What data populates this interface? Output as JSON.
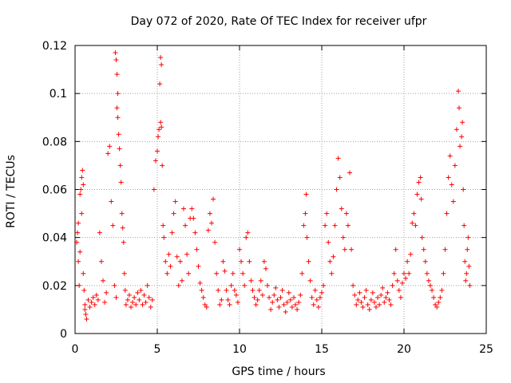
{
  "chart_data": {
    "type": "scatter",
    "title": "Day 072 of 2020, Rate Of TEC Index for receiver ufpr",
    "xlabel": "GPS time / hours",
    "ylabel": "ROTI / TECUs",
    "xlim": [
      0,
      25
    ],
    "ylim": [
      0,
      0.12
    ],
    "xticks": [
      0,
      5,
      10,
      15,
      20,
      25
    ],
    "yticks": [
      0,
      0.02,
      0.04,
      0.06,
      0.08,
      0.1,
      0.12
    ],
    "xtick_labels": [
      "0",
      "5",
      "10",
      "15",
      "20",
      "25"
    ],
    "ytick_labels": [
      "0",
      "0.02",
      "0.04",
      "0.06",
      "0.08",
      "0.1",
      "0.12"
    ],
    "grid": true,
    "marker": "+",
    "color": "#ff0000",
    "series": [
      {
        "name": "ROTI",
        "points": [
          [
            0.1,
            0.038
          ],
          [
            0.15,
            0.042
          ],
          [
            0.2,
            0.03
          ],
          [
            0.25,
            0.02
          ],
          [
            0.3,
            0.058
          ],
          [
            0.35,
            0.06
          ],
          [
            0.4,
            0.065
          ],
          [
            0.45,
            0.068
          ],
          [
            0.5,
            0.025
          ],
          [
            0.55,
            0.018
          ],
          [
            0.6,
            0.01
          ],
          [
            0.65,
            0.008
          ],
          [
            0.2,
            0.046
          ],
          [
            0.3,
            0.034
          ],
          [
            0.4,
            0.05
          ],
          [
            0.5,
            0.062
          ],
          [
            0.6,
            0.012
          ],
          [
            0.7,
            0.006
          ],
          [
            0.8,
            0.014
          ],
          [
            0.9,
            0.011
          ],
          [
            1.0,
            0.013
          ],
          [
            1.1,
            0.015
          ],
          [
            1.2,
            0.012
          ],
          [
            1.3,
            0.016
          ],
          [
            1.4,
            0.014
          ],
          [
            1.5,
            0.042
          ],
          [
            1.6,
            0.03
          ],
          [
            1.7,
            0.022
          ],
          [
            1.8,
            0.013
          ],
          [
            1.9,
            0.017
          ],
          [
            2.0,
            0.075
          ],
          [
            2.1,
            0.078
          ],
          [
            2.2,
            0.055
          ],
          [
            2.3,
            0.045
          ],
          [
            2.4,
            0.02
          ],
          [
            2.5,
            0.015
          ],
          [
            2.45,
            0.117
          ],
          [
            2.5,
            0.114
          ],
          [
            2.55,
            0.108
          ],
          [
            2.6,
            0.1
          ],
          [
            2.55,
            0.094
          ],
          [
            2.6,
            0.09
          ],
          [
            2.65,
            0.083
          ],
          [
            2.7,
            0.077
          ],
          [
            2.75,
            0.07
          ],
          [
            2.8,
            0.063
          ],
          [
            2.85,
            0.05
          ],
          [
            2.9,
            0.044
          ],
          [
            2.95,
            0.038
          ],
          [
            3.0,
            0.025
          ],
          [
            3.05,
            0.018
          ],
          [
            3.1,
            0.012
          ],
          [
            3.2,
            0.014
          ],
          [
            3.3,
            0.016
          ],
          [
            3.4,
            0.011
          ],
          [
            3.5,
            0.013
          ],
          [
            3.6,
            0.015
          ],
          [
            3.7,
            0.012
          ],
          [
            3.8,
            0.017
          ],
          [
            3.9,
            0.014
          ],
          [
            4.0,
            0.018
          ],
          [
            4.1,
            0.012
          ],
          [
            4.2,
            0.016
          ],
          [
            4.3,
            0.013
          ],
          [
            4.4,
            0.02
          ],
          [
            4.5,
            0.015
          ],
          [
            4.6,
            0.011
          ],
          [
            4.7,
            0.014
          ],
          [
            4.8,
            0.06
          ],
          [
            4.9,
            0.072
          ],
          [
            5.0,
            0.076
          ],
          [
            5.05,
            0.082
          ],
          [
            5.1,
            0.085
          ],
          [
            5.15,
            0.104
          ],
          [
            5.2,
            0.115
          ],
          [
            5.25,
            0.112
          ],
          [
            5.2,
            0.088
          ],
          [
            5.25,
            0.086
          ],
          [
            5.3,
            0.07
          ],
          [
            5.35,
            0.045
          ],
          [
            5.4,
            0.04
          ],
          [
            5.5,
            0.03
          ],
          [
            5.6,
            0.025
          ],
          [
            5.7,
            0.033
          ],
          [
            5.8,
            0.028
          ],
          [
            5.9,
            0.042
          ],
          [
            6.0,
            0.05
          ],
          [
            6.1,
            0.055
          ],
          [
            6.2,
            0.032
          ],
          [
            6.3,
            0.02
          ],
          [
            6.4,
            0.03
          ],
          [
            6.5,
            0.022
          ],
          [
            6.6,
            0.052
          ],
          [
            6.7,
            0.045
          ],
          [
            6.8,
            0.033
          ],
          [
            6.9,
            0.025
          ],
          [
            7.0,
            0.048
          ],
          [
            7.1,
            0.052
          ],
          [
            7.2,
            0.048
          ],
          [
            7.3,
            0.042
          ],
          [
            7.4,
            0.035
          ],
          [
            7.5,
            0.028
          ],
          [
            7.6,
            0.021
          ],
          [
            7.7,
            0.018
          ],
          [
            7.8,
            0.015
          ],
          [
            7.9,
            0.012
          ],
          [
            8.0,
            0.011
          ],
          [
            8.1,
            0.043
          ],
          [
            8.2,
            0.05
          ],
          [
            8.3,
            0.046
          ],
          [
            8.4,
            0.056
          ],
          [
            8.5,
            0.038
          ],
          [
            8.6,
            0.025
          ],
          [
            8.7,
            0.018
          ],
          [
            8.8,
            0.012
          ],
          [
            8.9,
            0.014
          ],
          [
            9.0,
            0.03
          ],
          [
            9.1,
            0.026
          ],
          [
            9.2,
            0.018
          ],
          [
            9.3,
            0.014
          ],
          [
            9.4,
            0.012
          ],
          [
            9.5,
            0.02
          ],
          [
            9.6,
            0.025
          ],
          [
            9.7,
            0.018
          ],
          [
            9.8,
            0.016
          ],
          [
            9.9,
            0.013
          ],
          [
            10.0,
            0.035
          ],
          [
            10.1,
            0.03
          ],
          [
            10.2,
            0.025
          ],
          [
            10.3,
            0.02
          ],
          [
            10.4,
            0.04
          ],
          [
            10.5,
            0.042
          ],
          [
            10.6,
            0.03
          ],
          [
            10.7,
            0.022
          ],
          [
            10.8,
            0.018
          ],
          [
            10.9,
            0.015
          ],
          [
            11.0,
            0.012
          ],
          [
            11.1,
            0.014
          ],
          [
            11.2,
            0.018
          ],
          [
            11.3,
            0.022
          ],
          [
            11.4,
            0.016
          ],
          [
            11.5,
            0.03
          ],
          [
            11.6,
            0.027
          ],
          [
            11.7,
            0.02
          ],
          [
            11.8,
            0.015
          ],
          [
            11.9,
            0.01
          ],
          [
            12.0,
            0.013
          ],
          [
            12.1,
            0.016
          ],
          [
            12.2,
            0.019
          ],
          [
            12.3,
            0.014
          ],
          [
            12.4,
            0.011
          ],
          [
            12.5,
            0.015
          ],
          [
            12.6,
            0.018
          ],
          [
            12.7,
            0.012
          ],
          [
            12.8,
            0.009
          ],
          [
            12.9,
            0.013
          ],
          [
            13.0,
            0.017
          ],
          [
            13.1,
            0.014
          ],
          [
            13.2,
            0.011
          ],
          [
            13.3,
            0.015
          ],
          [
            13.4,
            0.012
          ],
          [
            13.5,
            0.01
          ],
          [
            13.6,
            0.013
          ],
          [
            13.7,
            0.016
          ],
          [
            13.8,
            0.025
          ],
          [
            13.9,
            0.045
          ],
          [
            14.0,
            0.05
          ],
          [
            14.05,
            0.058
          ],
          [
            14.1,
            0.04
          ],
          [
            14.2,
            0.03
          ],
          [
            14.3,
            0.022
          ],
          [
            14.4,
            0.015
          ],
          [
            14.5,
            0.012
          ],
          [
            14.6,
            0.018
          ],
          [
            14.7,
            0.014
          ],
          [
            14.8,
            0.011
          ],
          [
            14.9,
            0.015
          ],
          [
            15.0,
            0.017
          ],
          [
            15.1,
            0.02
          ],
          [
            15.2,
            0.045
          ],
          [
            15.3,
            0.05
          ],
          [
            15.4,
            0.038
          ],
          [
            15.5,
            0.03
          ],
          [
            15.6,
            0.025
          ],
          [
            15.7,
            0.032
          ],
          [
            15.8,
            0.045
          ],
          [
            15.9,
            0.06
          ],
          [
            16.0,
            0.073
          ],
          [
            16.1,
            0.065
          ],
          [
            16.2,
            0.052
          ],
          [
            16.3,
            0.04
          ],
          [
            16.4,
            0.035
          ],
          [
            16.5,
            0.05
          ],
          [
            16.6,
            0.045
          ],
          [
            16.7,
            0.067
          ],
          [
            16.8,
            0.035
          ],
          [
            16.9,
            0.02
          ],
          [
            17.0,
            0.016
          ],
          [
            17.1,
            0.012
          ],
          [
            17.2,
            0.014
          ],
          [
            17.3,
            0.017
          ],
          [
            17.4,
            0.013
          ],
          [
            17.5,
            0.011
          ],
          [
            17.6,
            0.015
          ],
          [
            17.7,
            0.018
          ],
          [
            17.8,
            0.012
          ],
          [
            17.9,
            0.01
          ],
          [
            18.0,
            0.014
          ],
          [
            18.1,
            0.017
          ],
          [
            18.2,
            0.013
          ],
          [
            18.3,
            0.011
          ],
          [
            18.4,
            0.015
          ],
          [
            18.5,
            0.012
          ],
          [
            18.6,
            0.016
          ],
          [
            18.7,
            0.019
          ],
          [
            18.8,
            0.013
          ],
          [
            18.9,
            0.015
          ],
          [
            19.0,
            0.017
          ],
          [
            19.1,
            0.014
          ],
          [
            19.2,
            0.012
          ],
          [
            19.3,
            0.02
          ],
          [
            19.4,
            0.025
          ],
          [
            19.5,
            0.035
          ],
          [
            19.6,
            0.022
          ],
          [
            19.7,
            0.018
          ],
          [
            19.8,
            0.015
          ],
          [
            19.9,
            0.021
          ],
          [
            20.0,
            0.025
          ],
          [
            20.1,
            0.023
          ],
          [
            20.2,
            0.03
          ],
          [
            20.3,
            0.025
          ],
          [
            20.4,
            0.033
          ],
          [
            20.5,
            0.046
          ],
          [
            20.6,
            0.05
          ],
          [
            20.7,
            0.045
          ],
          [
            20.8,
            0.058
          ],
          [
            20.9,
            0.063
          ],
          [
            21.0,
            0.065
          ],
          [
            21.05,
            0.056
          ],
          [
            21.1,
            0.04
          ],
          [
            21.2,
            0.035
          ],
          [
            21.3,
            0.03
          ],
          [
            21.4,
            0.025
          ],
          [
            21.5,
            0.022
          ],
          [
            21.6,
            0.02
          ],
          [
            21.7,
            0.018
          ],
          [
            21.8,
            0.015
          ],
          [
            21.9,
            0.012
          ],
          [
            22.0,
            0.011
          ],
          [
            22.1,
            0.013
          ],
          [
            22.2,
            0.015
          ],
          [
            22.3,
            0.018
          ],
          [
            22.4,
            0.025
          ],
          [
            22.5,
            0.035
          ],
          [
            22.6,
            0.05
          ],
          [
            22.7,
            0.065
          ],
          [
            22.8,
            0.074
          ],
          [
            22.9,
            0.062
          ],
          [
            23.0,
            0.055
          ],
          [
            23.1,
            0.07
          ],
          [
            23.2,
            0.085
          ],
          [
            23.3,
            0.101
          ],
          [
            23.35,
            0.094
          ],
          [
            23.4,
            0.078
          ],
          [
            23.5,
            0.082
          ],
          [
            23.55,
            0.088
          ],
          [
            23.6,
            0.06
          ],
          [
            23.65,
            0.045
          ],
          [
            23.7,
            0.03
          ],
          [
            23.75,
            0.022
          ],
          [
            23.8,
            0.025
          ],
          [
            23.85,
            0.035
          ],
          [
            23.9,
            0.04
          ],
          [
            23.95,
            0.028
          ],
          [
            24.0,
            0.02
          ]
        ]
      }
    ]
  }
}
